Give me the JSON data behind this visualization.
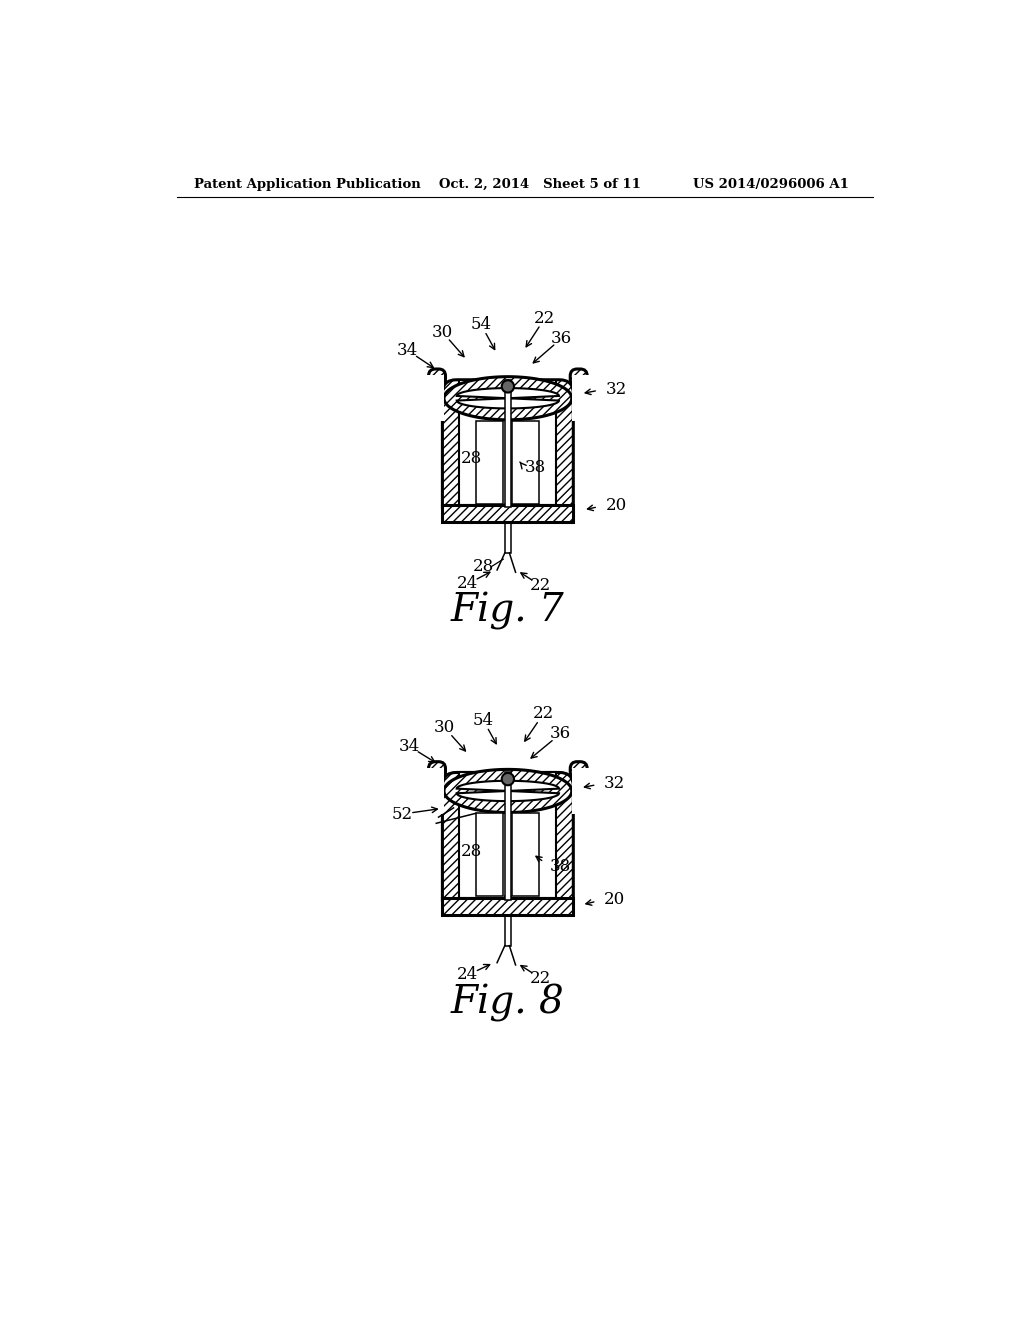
{
  "bg_color": "#ffffff",
  "line_color": "#000000",
  "header_left": "Patent Application Publication",
  "header_center": "Oct. 2, 2014   Sheet 5 of 11",
  "header_right": "US 2014/0296006 A1",
  "fig7_label": "Fig. 7",
  "fig8_label": "Fig. 8"
}
